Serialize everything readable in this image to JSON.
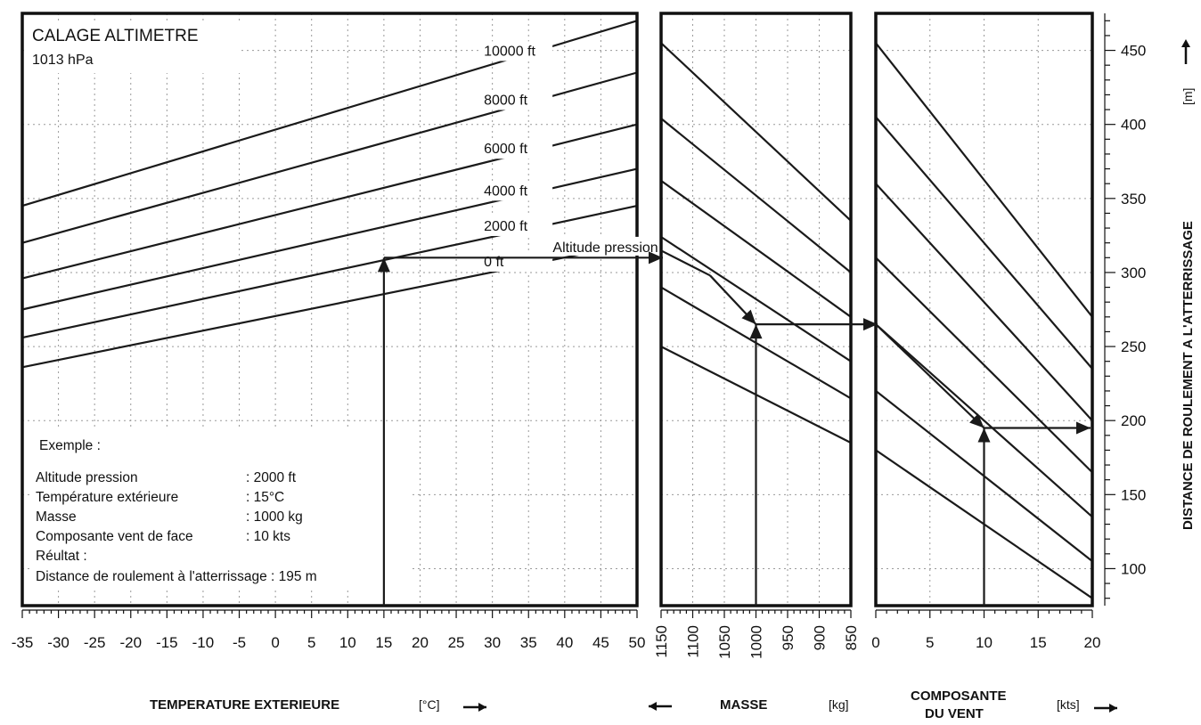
{
  "chart_data": {
    "type": "line",
    "title": "CALAGE ALTIMETRE",
    "subtitle": "1013 hPa",
    "panels": [
      {
        "id": "temperature",
        "xlabel": "TEMPERATURE EXTERIEURE",
        "xunit": "[°C]",
        "xlim": [
          -35,
          50
        ],
        "xticks": [
          "-35",
          "-30",
          "-25",
          "-20",
          "-15",
          "-10",
          "-5",
          "0",
          "5",
          "10",
          "15",
          "20",
          "25",
          "30",
          "35",
          "40",
          "45",
          "50"
        ],
        "series": [
          {
            "name": "10000 ft",
            "x": [
              -35,
              50
            ],
            "y": [
              345,
              470
            ]
          },
          {
            "name": "8000 ft",
            "x": [
              -35,
              50
            ],
            "y": [
              320,
              435
            ]
          },
          {
            "name": "6000 ft",
            "x": [
              -35,
              50
            ],
            "y": [
              296,
              400
            ]
          },
          {
            "name": "4000 ft",
            "x": [
              -35,
              50
            ],
            "y": [
              275,
              370
            ]
          },
          {
            "name": "2000 ft",
            "x": [
              -35,
              50
            ],
            "y": [
              256,
              345
            ]
          },
          {
            "name": "0 ft",
            "x": [
              -35,
              50
            ],
            "y": [
              236,
              320
            ]
          }
        ],
        "curve_note": "Altitude pression"
      },
      {
        "id": "masse",
        "xlabel": "MASSE",
        "xunit": "[kg]",
        "xlim": [
          1150,
          850
        ],
        "xticks": [
          "1150",
          "1100",
          "1050",
          "1000",
          "950",
          "900",
          "850"
        ],
        "series": [
          {
            "x": [
              1150,
              850
            ],
            "y": [
              455,
              335
            ]
          },
          {
            "x": [
              1150,
              850
            ],
            "y": [
              404,
              300
            ]
          },
          {
            "x": [
              1150,
              850
            ],
            "y": [
              362,
              270
            ]
          },
          {
            "x": [
              1150,
              850
            ],
            "y": [
              324,
              240
            ]
          },
          {
            "x": [
              1150,
              850
            ],
            "y": [
              290,
              215
            ]
          },
          {
            "x": [
              1150,
              850
            ],
            "y": [
              250,
              185
            ]
          }
        ]
      },
      {
        "id": "vent",
        "xlabel_line1": "COMPOSANTE",
        "xlabel_line2": "DU VENT",
        "xunit": "[kts]",
        "xlim": [
          0,
          20
        ],
        "xticks": [
          "0",
          "5",
          "10",
          "15",
          "20"
        ],
        "series": [
          {
            "x": [
              0,
              20
            ],
            "y": [
              455,
              270
            ]
          },
          {
            "x": [
              0,
              20
            ],
            "y": [
              405,
              235
            ]
          },
          {
            "x": [
              0,
              20
            ],
            "y": [
              360,
              200
            ]
          },
          {
            "x": [
              0,
              20
            ],
            "y": [
              310,
              165
            ]
          },
          {
            "x": [
              0,
              20
            ],
            "y": [
              265,
              135
            ]
          },
          {
            "x": [
              0,
              20
            ],
            "y": [
              220,
              105
            ]
          },
          {
            "x": [
              0,
              20
            ],
            "y": [
              180,
              80
            ]
          }
        ]
      }
    ],
    "y_axis": {
      "label": "DISTANCE DE ROULEMENT A L'ATTERRISSAGE",
      "unit": "[m]",
      "ylim": [
        75,
        475
      ],
      "ticks": [
        "100",
        "150",
        "200",
        "250",
        "300",
        "350",
        "400",
        "450"
      ]
    },
    "example_path": {
      "temperature": 15,
      "pressure_altitude_ft": 2000,
      "ref_distance": 310,
      "mass": 1000,
      "distance_after_mass": 265,
      "wind": 10,
      "result": 195
    },
    "example_box": {
      "heading": "Exemple :",
      "rows": [
        {
          "label": "Altitude pression",
          "value": ": 2000 ft"
        },
        {
          "label": "Température extérieure",
          "value": ": 15°C"
        },
        {
          "label": "Masse",
          "value": ": 1000 kg"
        },
        {
          "label": "Composante vent de face",
          "value": ": 10 kts"
        }
      ],
      "result_heading": "Réultat :",
      "result_line": "Distance de roulement à l'atterrissage : 195 m"
    },
    "grid": true
  }
}
